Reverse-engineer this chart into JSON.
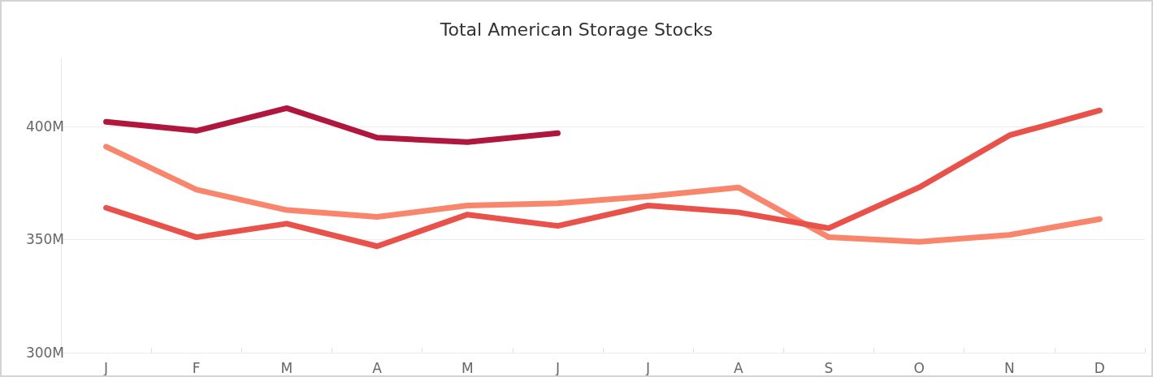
{
  "chart_data": {
    "type": "line",
    "title": "Total American Storage Stocks",
    "categories": [
      "J",
      "F",
      "M",
      "A",
      "M",
      "J",
      "J",
      "A",
      "S",
      "O",
      "N",
      "D"
    ],
    "series": [
      {
        "color": "#b0173d",
        "values": [
          402,
          398,
          408,
          395,
          393,
          397,
          null,
          null,
          null,
          null,
          null,
          null
        ]
      },
      {
        "color": "#f8866c",
        "values": [
          391,
          372,
          363,
          360,
          365,
          366,
          369,
          373,
          351,
          349,
          352,
          359
        ]
      },
      {
        "color": "#e8524b",
        "values": [
          364,
          351,
          357,
          347,
          361,
          356,
          365,
          362,
          355,
          373,
          396,
          407
        ]
      }
    ],
    "ylim": [
      300,
      430
    ],
    "yticks": [
      {
        "value": 300,
        "label": "300M"
      },
      {
        "value": 350,
        "label": "350M"
      },
      {
        "value": 400,
        "label": "400M"
      }
    ],
    "grid": "y",
    "marker": "none",
    "line_style": "solid"
  }
}
